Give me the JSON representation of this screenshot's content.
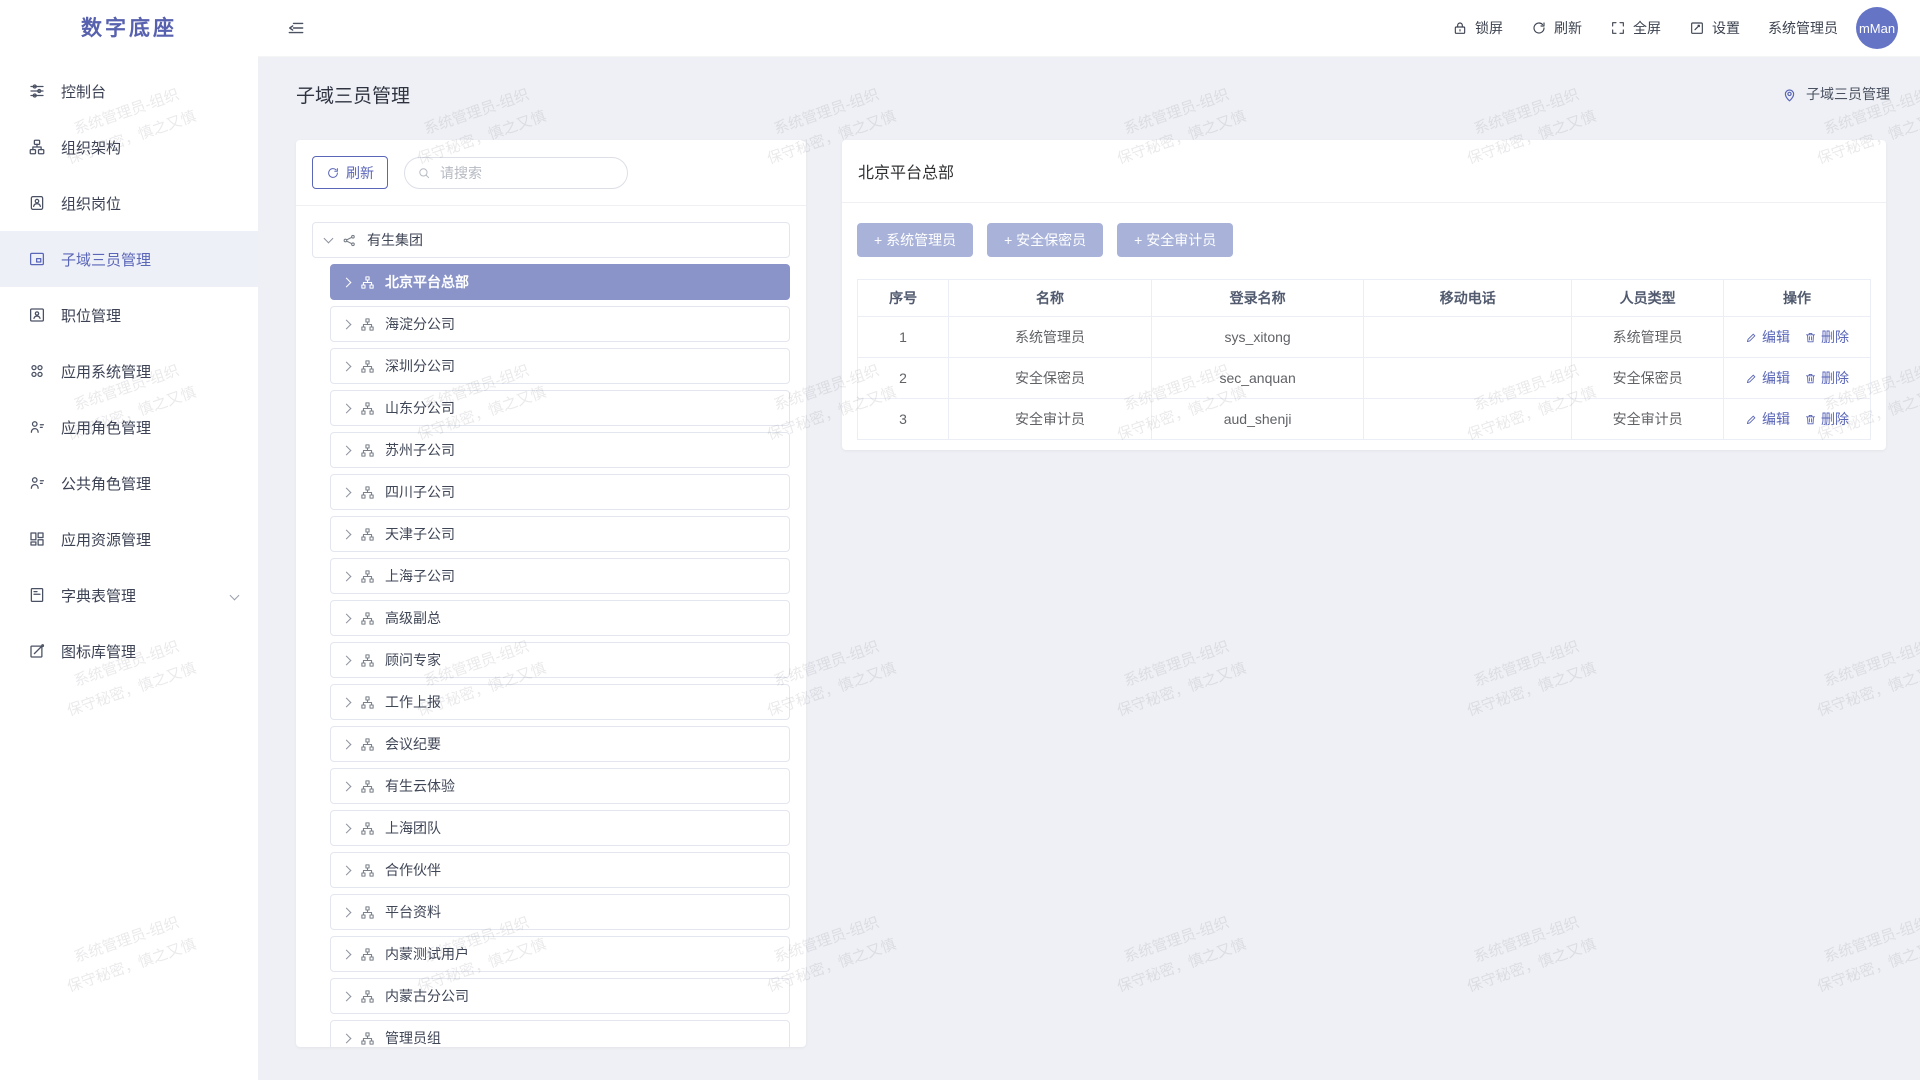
{
  "app": {
    "logo": "数字底座"
  },
  "watermark": {
    "line1": "系统管理员-组织",
    "line2": "保守秘密，慎之又慎"
  },
  "colors": {
    "accent": "#5a66b8",
    "accent_light_button": "#a9b3d9",
    "tree_selected_bg": "#8a94c8",
    "avatar_bg": "#6574c5",
    "content_bg": "#eef0f5"
  },
  "sidebar": {
    "items": [
      {
        "label": "控制台",
        "icon": "sliders-icon"
      },
      {
        "label": "组织架构",
        "icon": "org-chart-icon"
      },
      {
        "label": "组织岗位",
        "icon": "badge-icon"
      },
      {
        "label": "子域三员管理",
        "icon": "layout-icon",
        "selected": true
      },
      {
        "label": "职位管理",
        "icon": "id-card-icon"
      },
      {
        "label": "应用系统管理",
        "icon": "apps-icon"
      },
      {
        "label": "应用角色管理",
        "icon": "user-role-icon"
      },
      {
        "label": "公共角色管理",
        "icon": "user-role-icon"
      },
      {
        "label": "应用资源管理",
        "icon": "resource-icon"
      },
      {
        "label": "字典表管理",
        "icon": "book-icon",
        "expandable": true
      },
      {
        "label": "图标库管理",
        "icon": "icon-lib-icon"
      }
    ]
  },
  "header": {
    "actions": [
      {
        "label": "锁屏",
        "icon": "lock-icon"
      },
      {
        "label": "刷新",
        "icon": "refresh-icon"
      },
      {
        "label": "全屏",
        "icon": "fullscreen-icon"
      },
      {
        "label": "设置",
        "icon": "settings-icon"
      }
    ],
    "username": "系统管理员",
    "avatar_text": "mMan"
  },
  "page": {
    "title": "子域三员管理",
    "breadcrumb": "子域三员管理"
  },
  "tree_panel": {
    "refresh_label": "刷新",
    "search_placeholder": "请搜索",
    "root": "有生集团",
    "items": [
      {
        "label": "北京平台总部",
        "selected": true
      },
      {
        "label": "海淀分公司"
      },
      {
        "label": "深圳分公司"
      },
      {
        "label": "山东分公司"
      },
      {
        "label": "苏州子公司"
      },
      {
        "label": "四川子公司"
      },
      {
        "label": "天津子公司"
      },
      {
        "label": "上海子公司"
      },
      {
        "label": "高级副总"
      },
      {
        "label": "顾问专家"
      },
      {
        "label": "工作上报"
      },
      {
        "label": "会议纪要"
      },
      {
        "label": "有生云体验"
      },
      {
        "label": "上海团队"
      },
      {
        "label": "合作伙伴"
      },
      {
        "label": "平台资料"
      },
      {
        "label": "内蒙测试用户"
      },
      {
        "label": "内蒙古分公司"
      },
      {
        "label": "管理员组"
      }
    ]
  },
  "detail_panel": {
    "title": "北京平台总部",
    "buttons": [
      "+ 系统管理员",
      "+ 安全保密员",
      "+ 安全审计员"
    ],
    "table": {
      "headers": [
        "序号",
        "名称",
        "登录名称",
        "移动电话",
        "人员类型",
        "操作"
      ],
      "rows": [
        {
          "index": "1",
          "name": "系统管理员",
          "login": "sys_xitong",
          "phone": "",
          "type": "系统管理员"
        },
        {
          "index": "2",
          "name": "安全保密员",
          "login": "sec_anquan",
          "phone": "",
          "type": "安全保密员"
        },
        {
          "index": "3",
          "name": "安全审计员",
          "login": "aud_shenji",
          "phone": "",
          "type": "安全审计员"
        }
      ],
      "actions": {
        "edit": "编辑",
        "delete": "删除"
      }
    }
  }
}
